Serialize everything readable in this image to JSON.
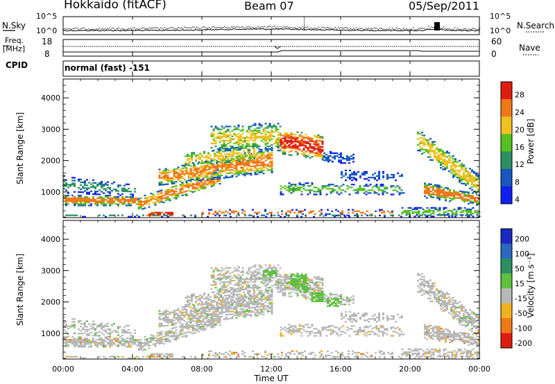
{
  "header": {
    "title": "Hokkaido (fitACF)",
    "beam": "Beam 07",
    "date": "05/Sep/2011"
  },
  "top_strip": {
    "left_label": "N.Sky",
    "left_ticks": [
      "10^5",
      "10^0"
    ],
    "right_label": "N.Search",
    "right_ticks": [
      "10^5",
      "10^0"
    ]
  },
  "freq_strip": {
    "left_label_1": "Freq.",
    "left_label_2": "[MHz]",
    "left_ticks": [
      "18",
      "8"
    ],
    "right_label": "Nave",
    "right_ticks": [
      "60",
      "0"
    ]
  },
  "cpid": {
    "label": "CPID",
    "value": "normal (fast) -151"
  },
  "chart_data": [
    {
      "type": "heatmap",
      "name": "Power",
      "ylabel": "Slant Range [km]",
      "ylim": [
        180,
        4600
      ],
      "yticks": [
        "1000",
        "2000",
        "3000",
        "4000"
      ],
      "colorbar_label": "Power [dB]",
      "colorbar_ticks": [
        "4",
        "8",
        "12",
        "16",
        "20",
        "24",
        "28"
      ],
      "colorbar_colors": [
        "#1020f0",
        "#1858c0",
        "#2a9060",
        "#58c020",
        "#f0c020",
        "#f07818",
        "#e01c10"
      ]
    },
    {
      "type": "heatmap",
      "name": "Velocity",
      "ylabel": "Slant Range [km]",
      "ylim": [
        180,
        4600
      ],
      "yticks": [
        "1000",
        "2000",
        "3000",
        "4000"
      ],
      "xlabel": "Time UT",
      "xticks": [
        "00:00",
        "04:00",
        "08:00",
        "12:00",
        "16:00",
        "20:00",
        "00:00"
      ],
      "colorbar_label": "Velocity [m s⁻¹]",
      "colorbar_ticks": [
        "200",
        "100",
        "50",
        "15",
        "-15",
        "-50",
        "-100",
        "-200"
      ],
      "colorbar_colors": [
        "#1828c0",
        "#2c68c0",
        "#2a9060",
        "#60c040",
        "#b8b8b8",
        "#f0b020",
        "#f07818",
        "#e01c10"
      ]
    }
  ],
  "colors": {
    "power_ramp": [
      "#1020f0",
      "#1858c0",
      "#2a9060",
      "#58c020",
      "#f0c020",
      "#f07818",
      "#e01c10"
    ],
    "velocity_gray": "#b8b8b8"
  }
}
